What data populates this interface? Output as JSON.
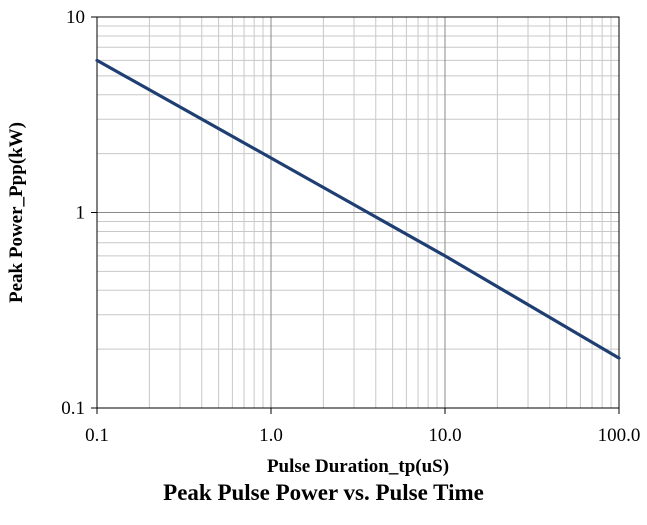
{
  "chart_data": {
    "type": "line",
    "title": "Peak Pulse Power vs. Pulse Time",
    "xlabel": "Pulse Duration_tp(uS)",
    "ylabel": "Peak  Power_Ppp(kW)",
    "x_scale": "log",
    "y_scale": "log",
    "xlim": [
      0.1,
      100
    ],
    "ylim": [
      0.1,
      10
    ],
    "grid": true,
    "x_ticks": [
      "0.1",
      "1.0",
      "10.0",
      "100.0"
    ],
    "y_ticks": [
      "0.1",
      "1",
      "10"
    ],
    "series": [
      {
        "color": "#1f3f73",
        "x": [
          0.1,
          1,
          10,
          100
        ],
        "y": [
          6.0,
          1.9,
          0.6,
          0.18
        ]
      }
    ]
  }
}
